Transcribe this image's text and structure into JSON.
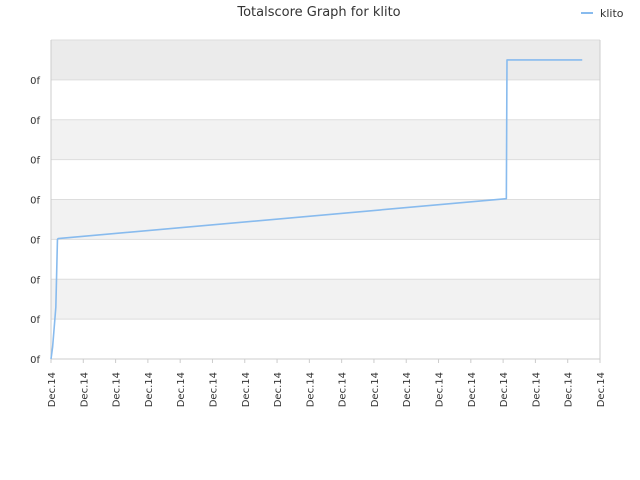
{
  "chart_data": {
    "type": "line",
    "title": "Totalscore Graph for klito",
    "xlabel": "",
    "ylabel": "",
    "x_tick_labels": [
      "Dec.14",
      "Dec.14",
      "Dec.14",
      "Dec.14",
      "Dec.14",
      "Dec.14",
      "Dec.14",
      "Dec.14",
      "Dec.14",
      "Dec.14",
      "Dec.14",
      "Dec.14",
      "Dec.14",
      "Dec.14",
      "Dec.14",
      "Dec.14",
      "Dec.14",
      "Dec.14"
    ],
    "y_tick_labels": [
      "0f",
      "0f",
      "0f",
      "0f",
      "0f",
      "0f",
      "0f",
      "0f"
    ],
    "xlim": [
      0,
      17
    ],
    "ylim": [
      0,
      8
    ],
    "grid": true,
    "legend_position": "top-right",
    "series": [
      {
        "name": "klito",
        "color": "#88bbee",
        "x": [
          0,
          0.05,
          0.15,
          0.2,
          0.22,
          14.1,
          14.12,
          16.45
        ],
        "y": [
          0,
          0.3,
          1.3,
          3.0,
          3.02,
          4.02,
          7.5,
          7.5
        ]
      }
    ]
  },
  "colors": {
    "band_even": "#ffffff",
    "band_odd": "#f2f2f2",
    "band_top": "#ebebeb",
    "grid": "#dddddd",
    "axis": "#cccccc"
  }
}
